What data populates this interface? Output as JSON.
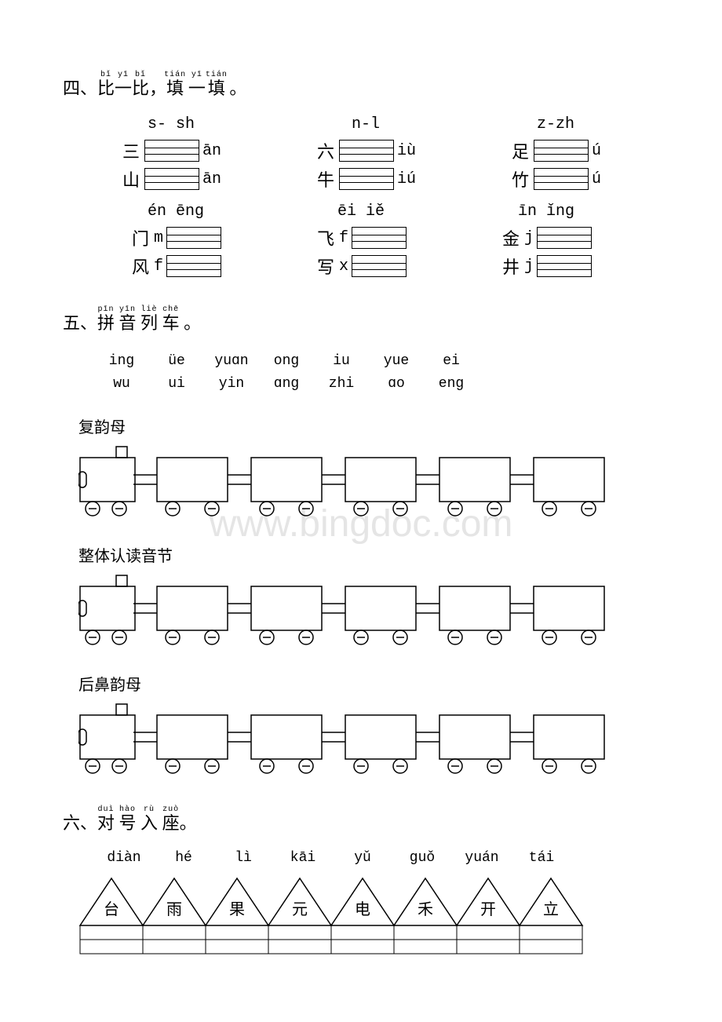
{
  "section4": {
    "title_cn": "四、比一比，填 一填 。",
    "title_pinyin": [
      "bǐ",
      "yī",
      "bǐ",
      "tián",
      "yī",
      "tián"
    ],
    "groups_top": [
      {
        "header": "s- sh",
        "rows": [
          {
            "char": "三",
            "right": "ān"
          },
          {
            "char": "山",
            "right": "ān"
          }
        ]
      },
      {
        "header": "n-l",
        "rows": [
          {
            "char": "六",
            "right": "iù"
          },
          {
            "char": "牛",
            "right": "iú"
          }
        ]
      },
      {
        "header": "z-zh",
        "rows": [
          {
            "char": "足",
            "right": "ú"
          },
          {
            "char": "竹",
            "right": "ú"
          }
        ]
      }
    ],
    "groups_bottom": [
      {
        "header": "én ēng",
        "rows": [
          {
            "char": "门",
            "left": "m"
          },
          {
            "char": "风",
            "left": "f"
          }
        ]
      },
      {
        "header": "ēi iě",
        "rows": [
          {
            "char": "飞",
            "left": "f"
          },
          {
            "char": "写",
            "left": "x"
          }
        ]
      },
      {
        "header": "īn ǐng",
        "rows": [
          {
            "char": "金",
            "left": "j"
          },
          {
            "char": "井",
            "left": "j"
          }
        ]
      }
    ]
  },
  "section5": {
    "title_cn": "五、拼 音 列 车 。",
    "title_pinyin": [
      "pīn",
      "yīn",
      "liè",
      "chē"
    ],
    "bank_row1": [
      "ing",
      "üe",
      "yuɑn",
      "ong",
      "iu",
      "yue",
      "ei"
    ],
    "bank_row2": [
      "wu",
      "ui",
      "yin",
      "ɑng",
      "zhi",
      "ɑo",
      "eng"
    ],
    "trains": [
      {
        "label": "复韵母",
        "cars": 5
      },
      {
        "label": "整体认读音节",
        "cars": 5
      },
      {
        "label": "后鼻韵母",
        "cars": 5
      }
    ]
  },
  "section6": {
    "title_cn": "六、对 号 入 座。",
    "title_pinyin": [
      "duì",
      "hào",
      "rù",
      "zuò"
    ],
    "pinyin_list": [
      "diàn",
      "hé",
      "lì",
      "kāi",
      "yǔ",
      "guǒ",
      "yuán",
      "tái"
    ],
    "triangle_chars": [
      "台",
      "雨",
      "果",
      "元",
      "电",
      "禾",
      "开",
      "立"
    ]
  },
  "watermark": "www.bingdoc.com"
}
